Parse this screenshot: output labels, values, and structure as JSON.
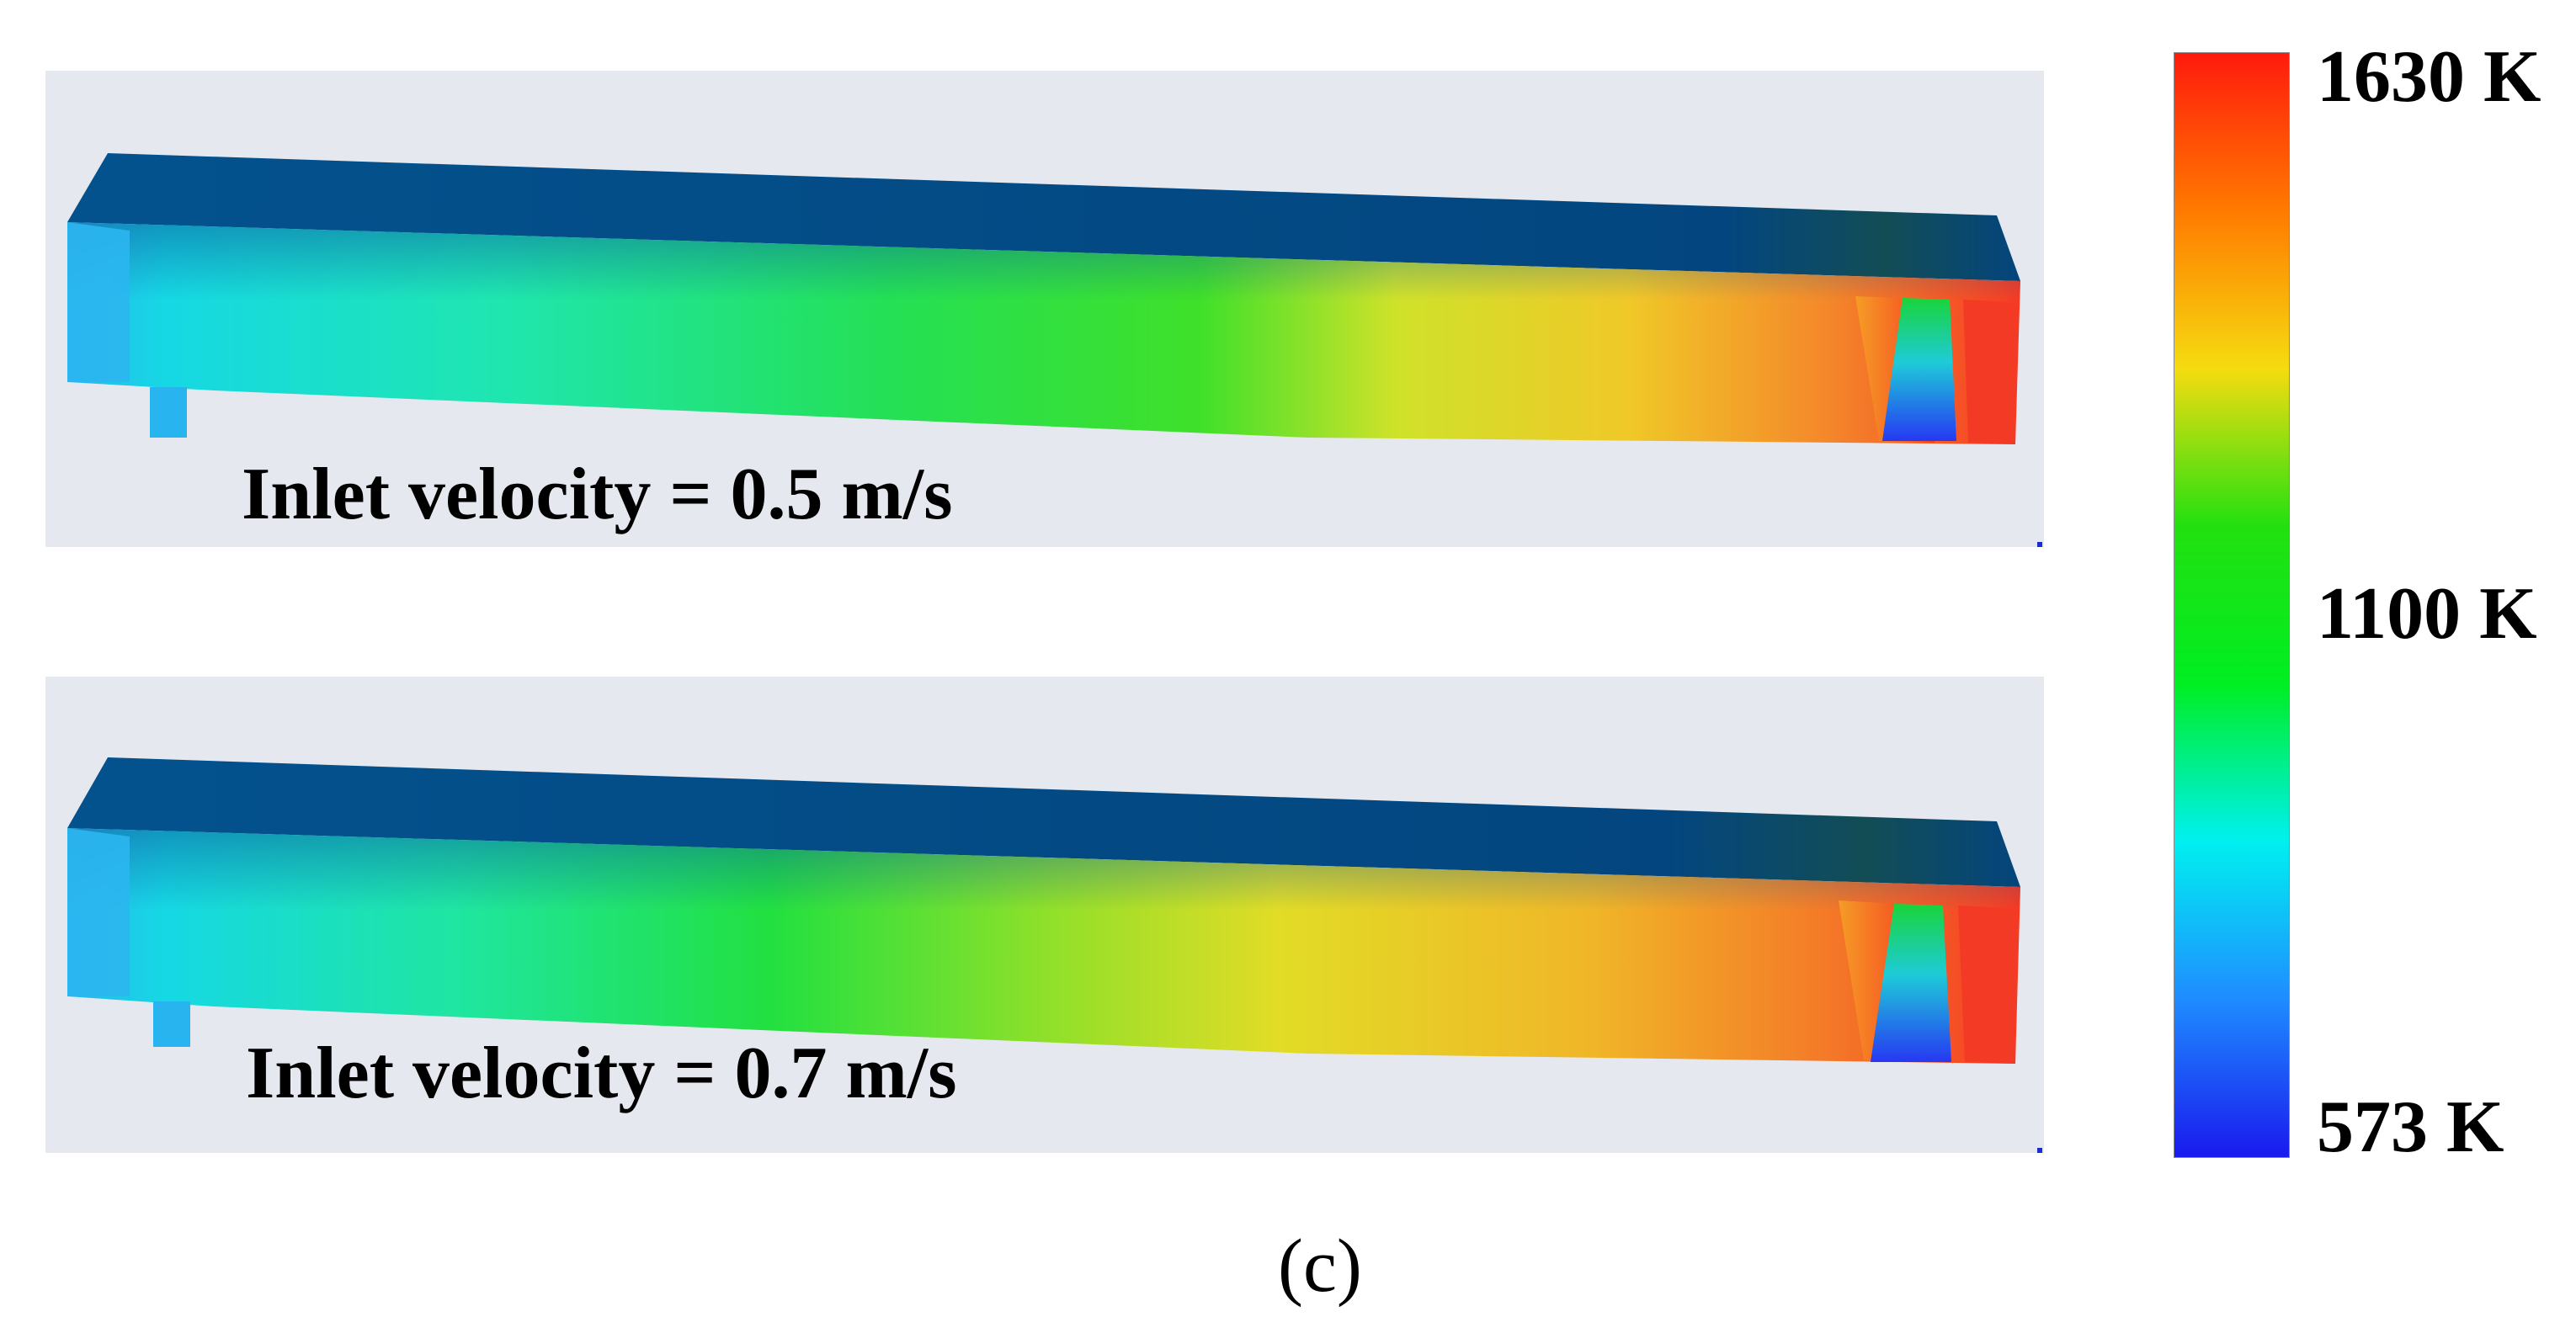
{
  "panels": [
    {
      "caption": "Inlet velocity = 0.5 m/s"
    },
    {
      "caption": "Inlet velocity = 0.7 m/s"
    }
  ],
  "colorbar": {
    "max_label": "1630 K",
    "mid_label": "1100 K",
    "min_label": "573 K",
    "max_value": 1630,
    "mid_value": 1100,
    "min_value": 573,
    "colors": [
      "#ff1a0d",
      "#ff7a00",
      "#f5dc10",
      "#22e010",
      "#00ee22",
      "#00f0f0",
      "#1f8cff",
      "#1a1aee"
    ]
  },
  "subfigure_label": "(c)",
  "colors": {
    "panel_background": "#e6e8ef",
    "top_face": "#034a86",
    "cold": "#2fb8f0",
    "warm": "#3ee04a",
    "hot": "#f23a26",
    "cold_core": "#2240f0"
  }
}
